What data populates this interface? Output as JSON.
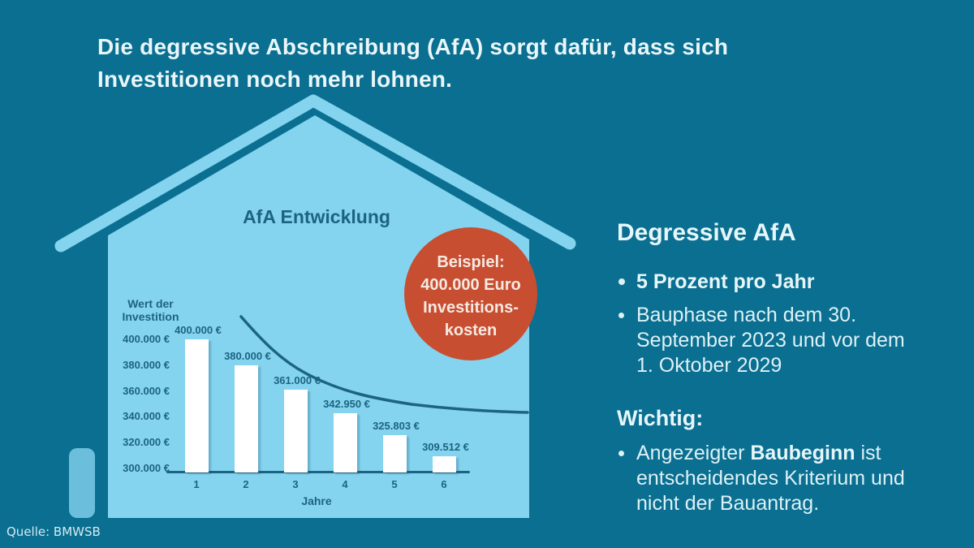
{
  "headline": {
    "line1": "Die degressive Abschreibung (AfA) sorgt dafür, dass sich",
    "line2": "Investitionen noch mehr lohnen."
  },
  "chart_data": {
    "type": "bar",
    "title": "AfA Entwicklung",
    "ylabel": "Wert der Investition",
    "xlabel": "Jahre",
    "categories": [
      "1",
      "2",
      "3",
      "4",
      "5",
      "6"
    ],
    "values": [
      400000,
      380000,
      361000,
      342950,
      325803,
      309512
    ],
    "bar_labels": [
      "400.000 €",
      "380.000 €",
      "361.000 €",
      "342.950 €",
      "325.803 €",
      "309.512 €"
    ],
    "yticks": [
      {
        "label": "400.000 €",
        "value": 400000
      },
      {
        "label": "380.000 €",
        "value": 380000
      },
      {
        "label": "360.000 €",
        "value": 360000
      },
      {
        "label": "340.000 €",
        "value": 340000
      },
      {
        "label": "320.000 €",
        "value": 320000
      },
      {
        "label": "300.000 €",
        "value": 300000
      }
    ],
    "ylim": [
      300000,
      400000
    ],
    "grid": false,
    "legend": "none",
    "annotations": [
      "exponential decay trend curve (5% degressive depreciation per year)"
    ]
  },
  "badge": {
    "line1": "Beispiel:",
    "line2": "400.000 Euro",
    "line3": "Investitions-",
    "line4": "kosten"
  },
  "right_panel": {
    "heading": "Degressive AfA",
    "bullets": [
      {
        "text": "5 Prozent pro Jahr"
      },
      {
        "text": "Bauphase nach dem 30. September 2023 und vor dem 1. Oktober 2029"
      }
    ],
    "subheading": "Wichtig:",
    "important_bullet": {
      "prefix": "Angezeigter ",
      "bold": "Baubeginn",
      "suffix": " ist entscheidendes Kriterium und nicht der Bauantrag."
    }
  },
  "source": "Quelle: BMWSB",
  "colors": {
    "background": "#0a6f90",
    "house_blue": "#84d4ef",
    "chimney_blue": "#6cbfdc",
    "dark_teal_text": "#1d6382",
    "badge_red": "#c84e31",
    "light_text": "#e9f6fa",
    "bar_white": "#ffffff"
  }
}
